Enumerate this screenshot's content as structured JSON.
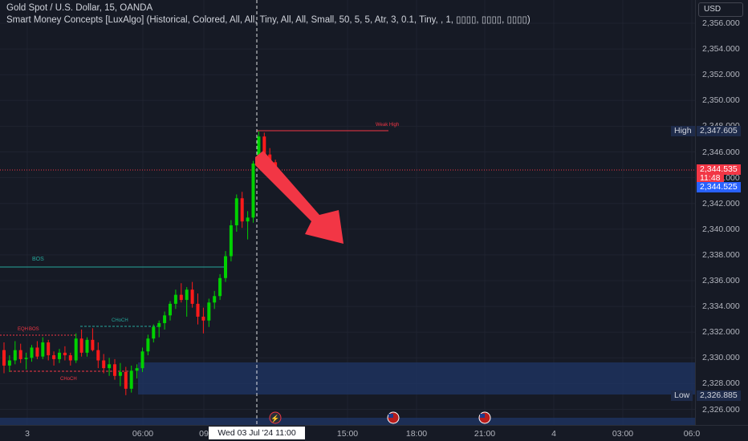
{
  "header": {
    "title": "Gold Spot / U.S. Dollar, 15, OANDA",
    "indicator": "Smart Money Concepts [LuxAlgo] (Historical, Colored, All, All, Tiny, All, All, Small, 50, 5, 5, Atr, 3, 0.1, Tiny, , 1, ▯▯▯▯, ▯▯▯▯, ▯▯▯▯)"
  },
  "currency_button": "USD",
  "price_axis": {
    "ticks": [
      "2,356.000",
      "2,354.000",
      "2,352.000",
      "2,350.000",
      "2,348.000",
      "2,346.000",
      "2,344.000",
      "2,342.000",
      "2,340.000",
      "2,338.000",
      "2,336.000",
      "2,334.000",
      "2,332.000",
      "2,330.000",
      "2,328.000",
      "2,326.000"
    ],
    "high_tag": "High",
    "high_value": "2,347.605",
    "current_value": "2,344.535",
    "countdown": "11:48",
    "bid_value": "2,344.525",
    "low_tag": "Low",
    "low_value": "2,326.885"
  },
  "time_axis": {
    "ticks": [
      "3",
      "06:00",
      "09",
      "15:00",
      "18:00",
      "21:00",
      "4",
      "03:00",
      "06:0"
    ],
    "crosshair_label": "Wed 03 Jul '24   11:00"
  },
  "annotations": {
    "weak_high": "Weak High",
    "bos_upper": "BOS",
    "choch_upper": "CHoCH",
    "eqh": "EQH",
    "bos_lower": "BOS",
    "choch_lower": "CHoCH"
  },
  "colors": {
    "background": "#161a25",
    "bull": "#00d100",
    "bear": "#ff1a1a",
    "arrow": "#f23645",
    "zone": "#1f3566",
    "price_label": "#f23645",
    "bid_label": "#2962ff"
  },
  "chart_data": {
    "type": "candlestick",
    "candles": [
      {
        "o": 2330.6,
        "h": 2331.2,
        "l": 2328.8,
        "c": 2329.4
      },
      {
        "o": 2329.4,
        "h": 2330.2,
        "l": 2328.9,
        "c": 2329.8
      },
      {
        "o": 2329.8,
        "h": 2331.3,
        "l": 2329.5,
        "c": 2330.6
      },
      {
        "o": 2330.6,
        "h": 2331.1,
        "l": 2329.6,
        "c": 2329.9
      },
      {
        "o": 2329.9,
        "h": 2330.4,
        "l": 2329.1,
        "c": 2330.0
      },
      {
        "o": 2330.0,
        "h": 2331.0,
        "l": 2329.7,
        "c": 2330.8
      },
      {
        "o": 2330.8,
        "h": 2331.3,
        "l": 2329.9,
        "c": 2330.1
      },
      {
        "o": 2330.1,
        "h": 2331.6,
        "l": 2329.9,
        "c": 2331.2
      },
      {
        "o": 2331.2,
        "h": 2331.4,
        "l": 2329.8,
        "c": 2330.2
      },
      {
        "o": 2330.2,
        "h": 2330.5,
        "l": 2329.4,
        "c": 2329.9
      },
      {
        "o": 2329.9,
        "h": 2330.7,
        "l": 2329.6,
        "c": 2330.4
      },
      {
        "o": 2330.4,
        "h": 2330.9,
        "l": 2329.8,
        "c": 2330.2
      },
      {
        "o": 2330.2,
        "h": 2330.4,
        "l": 2329.4,
        "c": 2329.8
      },
      {
        "o": 2329.8,
        "h": 2331.9,
        "l": 2329.6,
        "c": 2331.5
      },
      {
        "o": 2331.5,
        "h": 2332.2,
        "l": 2330.1,
        "c": 2330.4
      },
      {
        "o": 2330.4,
        "h": 2331.6,
        "l": 2330.1,
        "c": 2331.4
      },
      {
        "o": 2331.4,
        "h": 2332.3,
        "l": 2330.5,
        "c": 2330.6
      },
      {
        "o": 2330.6,
        "h": 2331.2,
        "l": 2329.2,
        "c": 2329.8
      },
      {
        "o": 2329.8,
        "h": 2330.3,
        "l": 2328.8,
        "c": 2329.2
      },
      {
        "o": 2329.2,
        "h": 2330.0,
        "l": 2328.6,
        "c": 2329.5
      },
      {
        "o": 2329.5,
        "h": 2329.9,
        "l": 2328.3,
        "c": 2328.6
      },
      {
        "o": 2328.6,
        "h": 2329.6,
        "l": 2327.8,
        "c": 2328.9
      },
      {
        "o": 2328.9,
        "h": 2329.3,
        "l": 2327.1,
        "c": 2327.6
      },
      {
        "o": 2327.6,
        "h": 2329.4,
        "l": 2327.3,
        "c": 2329.0
      },
      {
        "o": 2329.0,
        "h": 2329.5,
        "l": 2328.4,
        "c": 2329.2
      },
      {
        "o": 2329.2,
        "h": 2330.8,
        "l": 2328.9,
        "c": 2330.5
      },
      {
        "o": 2330.5,
        "h": 2331.8,
        "l": 2330.2,
        "c": 2331.5
      },
      {
        "o": 2331.5,
        "h": 2332.6,
        "l": 2331.2,
        "c": 2332.4
      },
      {
        "o": 2332.4,
        "h": 2332.9,
        "l": 2331.6,
        "c": 2332.7
      },
      {
        "o": 2332.7,
        "h": 2333.6,
        "l": 2332.2,
        "c": 2333.3
      },
      {
        "o": 2333.3,
        "h": 2334.4,
        "l": 2332.9,
        "c": 2334.2
      },
      {
        "o": 2334.2,
        "h": 2335.3,
        "l": 2333.8,
        "c": 2334.9
      },
      {
        "o": 2334.9,
        "h": 2335.8,
        "l": 2334.3,
        "c": 2334.5
      },
      {
        "o": 2334.5,
        "h": 2335.5,
        "l": 2333.2,
        "c": 2335.3
      },
      {
        "o": 2335.3,
        "h": 2335.9,
        "l": 2333.9,
        "c": 2334.2
      },
      {
        "o": 2334.2,
        "h": 2335.0,
        "l": 2332.6,
        "c": 2333.2
      },
      {
        "o": 2333.2,
        "h": 2333.9,
        "l": 2331.9,
        "c": 2332.9
      },
      {
        "o": 2332.9,
        "h": 2334.6,
        "l": 2332.4,
        "c": 2334.3
      },
      {
        "o": 2334.3,
        "h": 2335.2,
        "l": 2333.8,
        "c": 2334.8
      },
      {
        "o": 2334.8,
        "h": 2336.5,
        "l": 2334.5,
        "c": 2336.2
      },
      {
        "o": 2336.2,
        "h": 2338.3,
        "l": 2335.9,
        "c": 2337.9
      },
      {
        "o": 2337.9,
        "h": 2340.7,
        "l": 2337.5,
        "c": 2340.3
      },
      {
        "o": 2340.3,
        "h": 2342.7,
        "l": 2339.8,
        "c": 2342.4
      },
      {
        "o": 2342.4,
        "h": 2342.9,
        "l": 2340.1,
        "c": 2340.6
      },
      {
        "o": 2340.6,
        "h": 2341.4,
        "l": 2339.2,
        "c": 2340.9
      },
      {
        "o": 2340.9,
        "h": 2345.3,
        "l": 2340.5,
        "c": 2345.1
      },
      {
        "o": 2345.1,
        "h": 2347.605,
        "l": 2344.9,
        "c": 2347.2
      },
      {
        "o": 2347.2,
        "h": 2347.5,
        "l": 2345.4,
        "c": 2345.8
      },
      {
        "o": 2345.8,
        "h": 2346.3,
        "l": 2345.0,
        "c": 2345.2
      },
      {
        "o": 2345.2,
        "h": 2345.4,
        "l": 2344.5,
        "c": 2344.535
      }
    ],
    "ylim": [
      2325.5,
      2357.2
    ],
    "high": 2347.605,
    "low": 2326.885,
    "last": 2344.535
  }
}
